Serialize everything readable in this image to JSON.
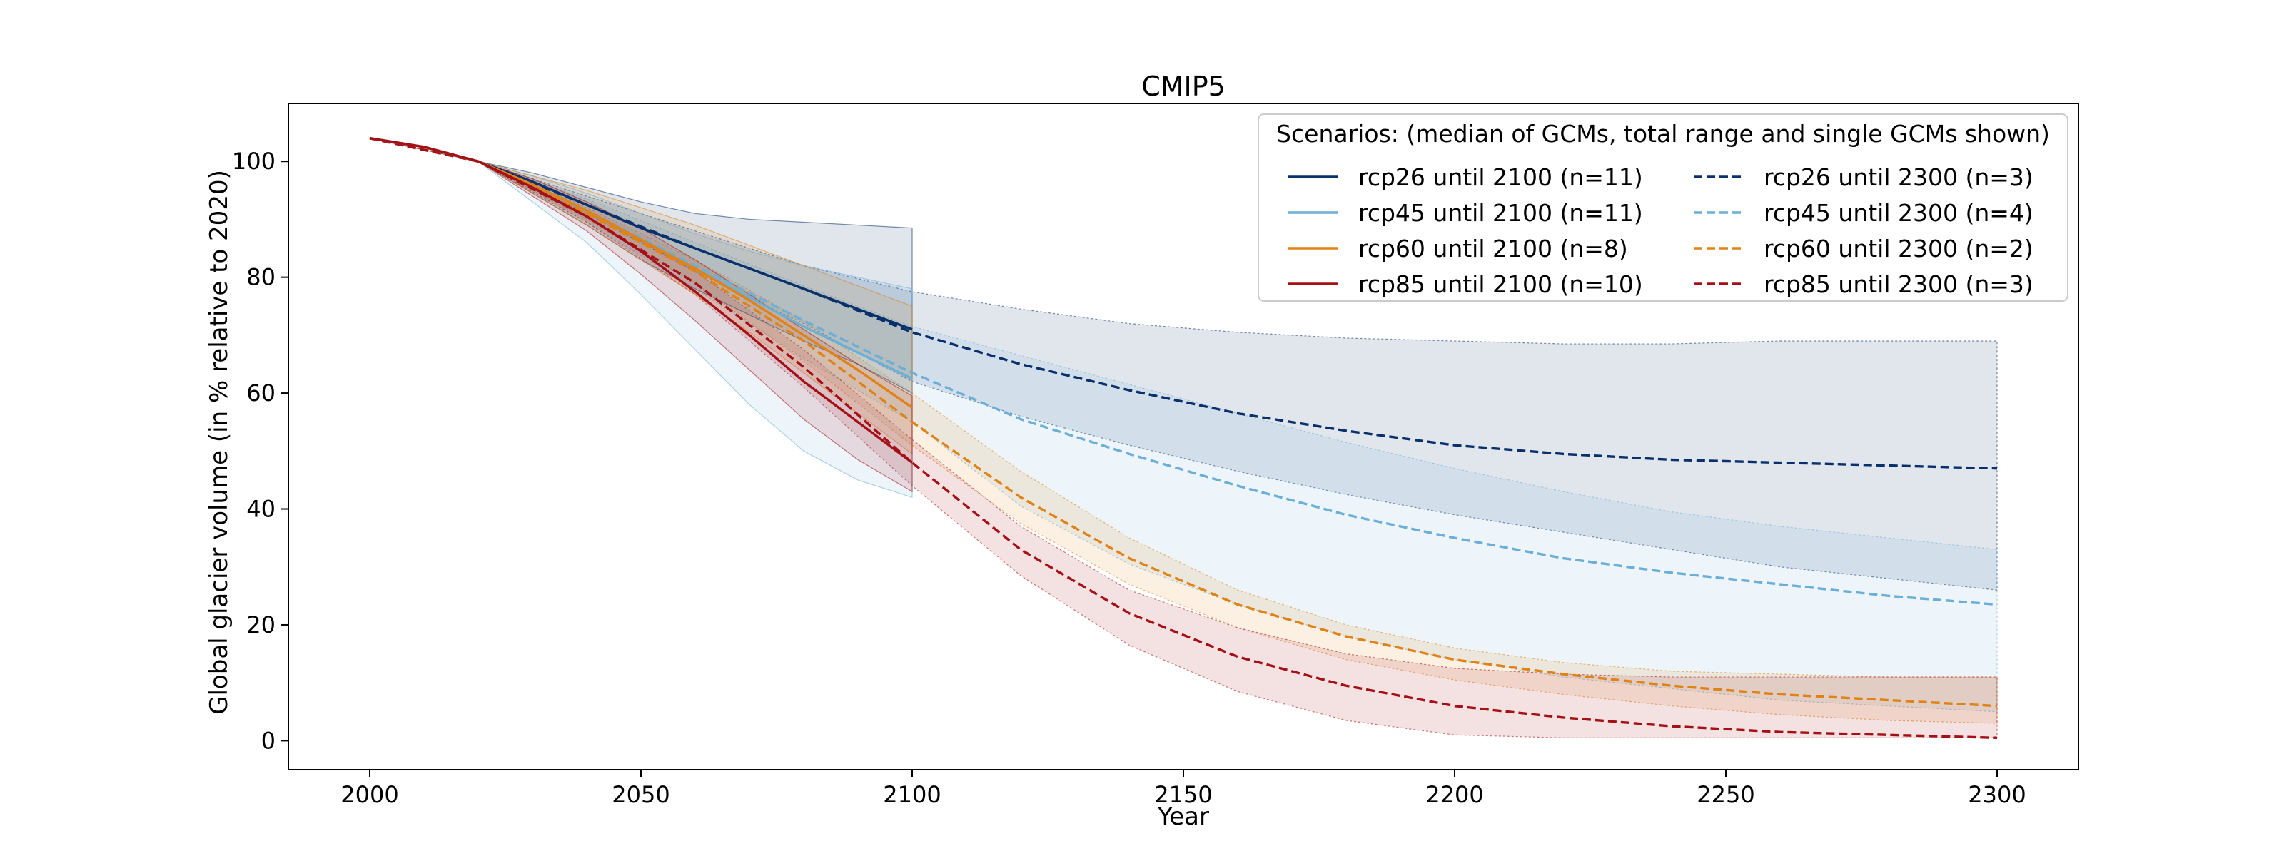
{
  "chart_data": {
    "type": "line",
    "title": "CMIP5",
    "xlabel": "Year",
    "ylabel": "Global glacier volume (in % relative to 2020)",
    "xlim": [
      1985,
      2315
    ],
    "ylim": [
      -5,
      110
    ],
    "xticks": [
      2000,
      2050,
      2100,
      2150,
      2200,
      2250,
      2300
    ],
    "yticks": [
      0,
      20,
      40,
      60,
      80,
      100
    ],
    "legend": {
      "title": "Scenarios: (median of GCMs, total range and single GCMs shown)",
      "placement": "upper right",
      "columns": 2
    },
    "series": [
      {
        "name": "rcp26 until 2100 (n=11)",
        "color": "#08306b",
        "dash": "solid",
        "x": [
          2000,
          2010,
          2020,
          2030,
          2040,
          2050,
          2060,
          2070,
          2080,
          2090,
          2100
        ],
        "y": [
          104,
          102.5,
          100,
          96.5,
          92.5,
          88.5,
          85,
          81.5,
          78,
          74.5,
          71
        ],
        "range_low": [
          104,
          102.5,
          100,
          94.5,
          89,
          83,
          78,
          73.5,
          69,
          65,
          60
        ],
        "range_high": [
          104,
          102.5,
          100,
          98,
          95.5,
          93,
          91,
          90,
          89.5,
          89,
          88.5
        ]
      },
      {
        "name": "rcp45 until 2100 (n=11)",
        "color": "#6baed6",
        "dash": "solid",
        "x": [
          2000,
          2010,
          2020,
          2030,
          2040,
          2050,
          2060,
          2070,
          2080,
          2090,
          2100
        ],
        "y": [
          104,
          102.5,
          100,
          96,
          91.5,
          86.5,
          81.5,
          76.5,
          71.5,
          67,
          62.5
        ],
        "range_low": [
          104,
          102.5,
          100,
          93,
          86,
          77,
          67.5,
          58,
          50,
          45,
          42
        ],
        "range_high": [
          104,
          102.5,
          100,
          97.5,
          94.5,
          91,
          87.5,
          84.5,
          82,
          80,
          78
        ]
      },
      {
        "name": "rcp60 until 2100 (n=8)",
        "color": "#e08214",
        "dash": "solid",
        "x": [
          2000,
          2010,
          2020,
          2030,
          2040,
          2050,
          2060,
          2070,
          2080,
          2090,
          2100
        ],
        "y": [
          104,
          102.5,
          100,
          96,
          91.5,
          86.5,
          81.5,
          76,
          70,
          64,
          57.5
        ],
        "range_low": [
          104,
          102.5,
          100,
          94.5,
          89,
          83,
          77,
          70.5,
          63.5,
          56.5,
          49.5
        ],
        "range_high": [
          104,
          102.5,
          100,
          97.5,
          95,
          92,
          89,
          85.5,
          82,
          78.5,
          75
        ]
      },
      {
        "name": "rcp85 until 2100 (n=10)",
        "color": "#a50f15",
        "dash": "solid",
        "x": [
          2000,
          2010,
          2020,
          2030,
          2040,
          2050,
          2060,
          2070,
          2080,
          2090,
          2100
        ],
        "y": [
          104,
          102.5,
          100,
          95.5,
          90.5,
          84.5,
          77.5,
          70,
          62,
          55,
          48
        ],
        "range_low": [
          104,
          102.5,
          100,
          94,
          88,
          80.5,
          72.5,
          64,
          55.5,
          48.5,
          43
        ],
        "range_high": [
          104,
          102.5,
          100,
          97,
          93,
          88.5,
          83,
          77,
          71,
          65,
          59.5
        ]
      },
      {
        "name": "rcp26 until 2300 (n=3)",
        "color": "#08306b",
        "dash": "dashed",
        "x": [
          2000,
          2020,
          2040,
          2060,
          2080,
          2100,
          2120,
          2140,
          2160,
          2180,
          2200,
          2220,
          2240,
          2260,
          2280,
          2300
        ],
        "y": [
          104,
          100,
          92.5,
          85,
          78,
          70.5,
          65,
          60.5,
          56.5,
          53.5,
          51,
          49.5,
          48.5,
          48,
          47.5,
          47
        ],
        "range_low": [
          104,
          100,
          91,
          81,
          72,
          62,
          56,
          51,
          46.5,
          42.5,
          39,
          36,
          33,
          30,
          28,
          26
        ],
        "range_high": [
          104,
          100,
          94,
          88,
          82,
          77.5,
          74.5,
          72,
          70.5,
          69.5,
          69,
          68.5,
          68.5,
          69,
          69,
          69
        ]
      },
      {
        "name": "rcp45 until 2300 (n=4)",
        "color": "#6baed6",
        "dash": "dashed",
        "x": [
          2000,
          2020,
          2040,
          2060,
          2080,
          2100,
          2120,
          2140,
          2160,
          2180,
          2200,
          2220,
          2240,
          2260,
          2280,
          2300
        ],
        "y": [
          104,
          100,
          91.5,
          82,
          72.5,
          63.5,
          55.5,
          49.5,
          44,
          39,
          35,
          31.5,
          29,
          27,
          25,
          23.5
        ],
        "range_low": [
          104,
          100,
          89.5,
          78,
          66,
          55,
          40.5,
          30.5,
          23.5,
          18,
          14,
          11,
          9,
          7,
          6,
          5
        ],
        "range_high": [
          104,
          100,
          93.5,
          86,
          78.5,
          71.5,
          66.5,
          61.5,
          56.5,
          51.5,
          47,
          43,
          39.5,
          37,
          35,
          33
        ]
      },
      {
        "name": "rcp60 until 2300 (n=2)",
        "color": "#e08214",
        "dash": "dashed",
        "x": [
          2000,
          2020,
          2040,
          2060,
          2080,
          2100,
          2120,
          2140,
          2160,
          2180,
          2200,
          2220,
          2240,
          2260,
          2280,
          2300
        ],
        "y": [
          104,
          100,
          91,
          81,
          69,
          55,
          42,
          31.5,
          23.5,
          18,
          14,
          11.5,
          9.5,
          8,
          7,
          6
        ],
        "range_low": [
          104,
          100,
          90,
          79,
          65.5,
          51,
          37.5,
          27,
          19.5,
          14,
          10.5,
          8,
          6,
          4.5,
          3.5,
          3
        ],
        "range_high": [
          104,
          100,
          92,
          83,
          72.5,
          60,
          46.5,
          35,
          26,
          20,
          16,
          13.5,
          12,
          11.5,
          11,
          11
        ]
      },
      {
        "name": "rcp85 until 2300 (n=3)",
        "color": "#a50f15",
        "dash": "dashed",
        "x": [
          2000,
          2020,
          2040,
          2060,
          2080,
          2100,
          2120,
          2140,
          2160,
          2180,
          2200,
          2220,
          2240,
          2260,
          2280,
          2300
        ],
        "y": [
          104,
          100,
          90.5,
          79,
          64.5,
          48,
          33,
          22,
          14.5,
          9.5,
          6,
          4,
          2.5,
          1.5,
          1,
          0.5
        ],
        "range_low": [
          104,
          100,
          89.5,
          77,
          61,
          44,
          28.5,
          16.5,
          8.5,
          3.5,
          1,
          0.5,
          0.5,
          0.5,
          0.5,
          0.5
        ],
        "range_high": [
          104,
          100,
          91.5,
          81,
          67.5,
          52,
          37,
          26,
          19.5,
          15,
          12.5,
          11.5,
          11,
          11,
          11,
          11
        ]
      }
    ]
  }
}
